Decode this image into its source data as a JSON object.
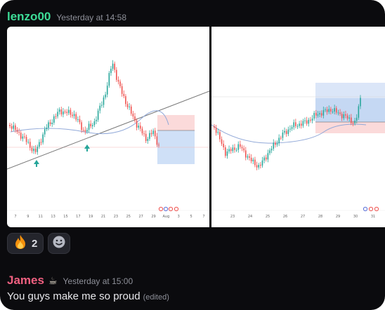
{
  "messages": [
    {
      "author": "lenzo00",
      "timestamp": "Yesterday at 14:58",
      "author_color": "#3ddc97"
    },
    {
      "author": "James",
      "author_suffix": "☕",
      "timestamp": "Yesterday at 15:00",
      "text": "You guys make me so proud",
      "edited_tag": "(edited)",
      "author_color": "#f06080"
    }
  ],
  "chart1": {
    "x_labels": [
      "7",
      "9",
      "11",
      "13",
      "15",
      "17",
      "19",
      "21",
      "23",
      "25",
      "27",
      "29",
      "Aug",
      "3",
      "5",
      "7"
    ]
  },
  "chart2": {
    "x_labels": [
      "23",
      "24",
      "25",
      "26",
      "27",
      "28",
      "29",
      "30",
      "31"
    ]
  },
  "reactions": [
    {
      "emoji": "🔥",
      "count": "2",
      "icon": "fire-icon"
    }
  ],
  "add_reaction": {
    "icon": "smiley-icon"
  },
  "colors": {
    "up": "#26a69a",
    "down": "#ef5350",
    "ma": "#90a8d8"
  }
}
